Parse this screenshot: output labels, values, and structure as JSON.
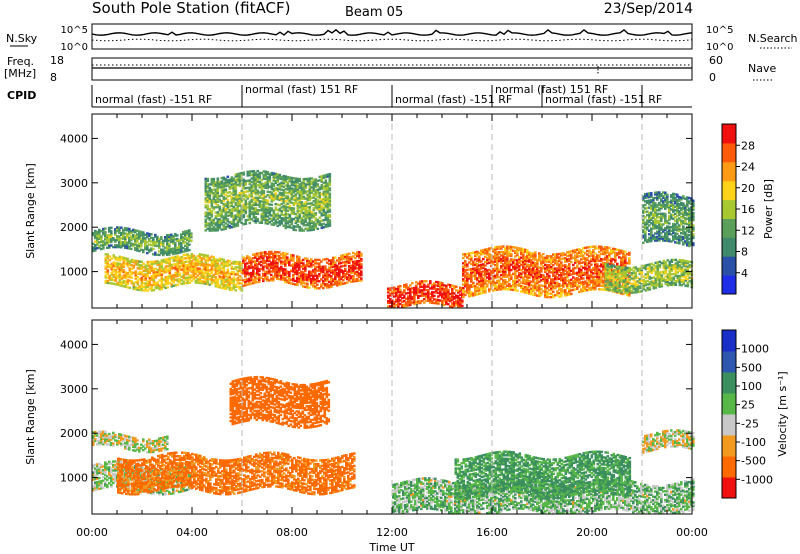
{
  "header": {
    "title": "South Pole Station (fitACF)",
    "beam": "Beam 05",
    "date": "23/Sep/2014"
  },
  "strips": {
    "nsky_label": "N.Sky",
    "nsky_ticks": [
      "10^5",
      "10^0"
    ],
    "nsearch_label": "N.Search",
    "nsearch_ticks": [
      "10^5",
      "10^0"
    ],
    "freq_label_1": "Freq.",
    "freq_label_2": "[MHz]",
    "freq_ticks": [
      "18",
      "8"
    ],
    "nave_label": "Nave",
    "nave_ticks": [
      "60",
      "0"
    ],
    "cpid_label": "CPID",
    "cpid_segments": [
      {
        "start": 0.0,
        "end": 6.0,
        "label": "normal (fast) -151 RF"
      },
      {
        "start": 6.0,
        "end": 12.0,
        "label": "normal (fast) 151 RF"
      },
      {
        "start": 12.0,
        "end": 16.0,
        "label": "normal (fast) -151 RF"
      },
      {
        "start": 16.0,
        "end": 18.0,
        "label": "normal (fast) 151 RF"
      },
      {
        "start": 18.0,
        "end": 22.0,
        "label": "normal (fast) -151 RF"
      },
      {
        "start": 22.0,
        "end": 24.0,
        "label": ""
      }
    ]
  },
  "axes": {
    "xlabel": "Time UT",
    "xticks": [
      "00:00",
      "04:00",
      "08:00",
      "12:00",
      "16:00",
      "20:00",
      "00:00"
    ],
    "ylabel": "Slant Range [km]",
    "yticks": [
      "1000",
      "2000",
      "3000",
      "4000"
    ]
  },
  "colorbars": {
    "power": {
      "label": "Power [dB]",
      "ticks": [
        "4",
        "8",
        "12",
        "16",
        "20",
        "24",
        "28"
      ]
    },
    "velocity": {
      "label": "Velocity [m s⁻¹]",
      "ticks": [
        "1000",
        "500",
        "100",
        "25",
        "-25",
        "-100",
        "-500",
        "-1000"
      ]
    }
  },
  "chart_data": [
    {
      "type": "heatmap",
      "title": "",
      "xlabel": "Time UT",
      "ylabel": "Slant Range [km]",
      "xlim": [
        0,
        24
      ],
      "ylim": [
        180,
        4550
      ],
      "colorbar": {
        "label": "Power [dB]",
        "range": [
          0,
          31
        ],
        "colors": [
          "#1f2ee6",
          "#2a50a8",
          "#3f8a6a",
          "#5aa05a",
          "#a8c832",
          "#ffd21a",
          "#ff9a14",
          "#ff5a0a",
          "#f01010"
        ]
      },
      "bands": [
        {
          "t": [
            0.0,
            4.0
          ],
          "range": [
            1450,
            1900
          ],
          "value": 9
        },
        {
          "t": [
            0.5,
            6.0
          ],
          "range": [
            650,
            1300
          ],
          "value": 17
        },
        {
          "t": [
            6.0,
            10.8
          ],
          "range": [
            700,
            1350
          ],
          "value": 24
        },
        {
          "t": [
            4.5,
            9.5
          ],
          "range": [
            2000,
            3200
          ],
          "value": 10
        },
        {
          "t": [
            11.8,
            14.8
          ],
          "range": [
            200,
            700
          ],
          "value": 25
        },
        {
          "t": [
            14.8,
            21.5
          ],
          "range": [
            500,
            1500
          ],
          "value": 22
        },
        {
          "t": [
            20.5,
            24.0
          ],
          "range": [
            600,
            1200
          ],
          "value": 12
        },
        {
          "t": [
            22.0,
            24.0
          ],
          "range": [
            1600,
            2700
          ],
          "value": 8
        }
      ]
    },
    {
      "type": "heatmap",
      "title": "",
      "xlabel": "Time UT",
      "ylabel": "Slant Range [km]",
      "xlim": [
        0,
        24
      ],
      "ylim": [
        180,
        4550
      ],
      "colorbar": {
        "label": "Velocity [m s⁻¹]",
        "range": [
          -1000,
          1000
        ],
        "colors": [
          "#f01010",
          "#ff6a00",
          "#f29a20",
          "#c8c8c8",
          "#57b848",
          "#3b8f5e",
          "#2e58b0",
          "#1a2fc8"
        ]
      },
      "bands": [
        {
          "t": [
            0.0,
            4.0
          ],
          "range": [
            700,
            1300
          ],
          "value": 25
        },
        {
          "t": [
            0.0,
            3.0
          ],
          "range": [
            1650,
            1950
          ],
          "value": 0
        },
        {
          "t": [
            1.0,
            10.5
          ],
          "range": [
            700,
            1500
          ],
          "value": -150
        },
        {
          "t": [
            5.5,
            9.5
          ],
          "range": [
            2200,
            3200
          ],
          "value": -200
        },
        {
          "t": [
            12.0,
            24.0
          ],
          "range": [
            200,
            900
          ],
          "value": 60
        },
        {
          "t": [
            14.5,
            21.5
          ],
          "range": [
            600,
            1500
          ],
          "value": 120
        },
        {
          "t": [
            22.0,
            24.0
          ],
          "range": [
            1600,
            2000
          ],
          "value": 0
        }
      ]
    }
  ]
}
